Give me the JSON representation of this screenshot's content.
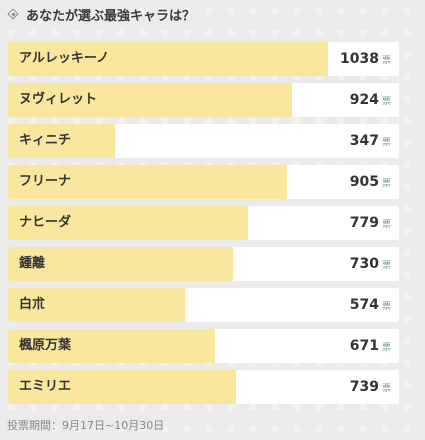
{
  "header": {
    "title": "あなたが選ぶ最強キャラは？",
    "icon": "diamond-icon"
  },
  "unit_label": "票",
  "max_scale": 1270,
  "colors": {
    "bar_fill": "#f9e79e",
    "row_bg": "#ffffff",
    "unit": "#7a9aa0"
  },
  "items": [
    {
      "name": "アルレッキーノ",
      "votes": 1038
    },
    {
      "name": "ヌヴィレット",
      "votes": 924
    },
    {
      "name": "キィニチ",
      "votes": 347
    },
    {
      "name": "フリーナ",
      "votes": 905
    },
    {
      "name": "ナヒーダ",
      "votes": 779
    },
    {
      "name": "鍾離",
      "votes": 730
    },
    {
      "name": "白朮",
      "votes": 574
    },
    {
      "name": "楓原万葉",
      "votes": 671
    },
    {
      "name": "エミリエ",
      "votes": 739
    }
  ],
  "footer": {
    "period": "投票期間：9月17日~10月30日"
  }
}
